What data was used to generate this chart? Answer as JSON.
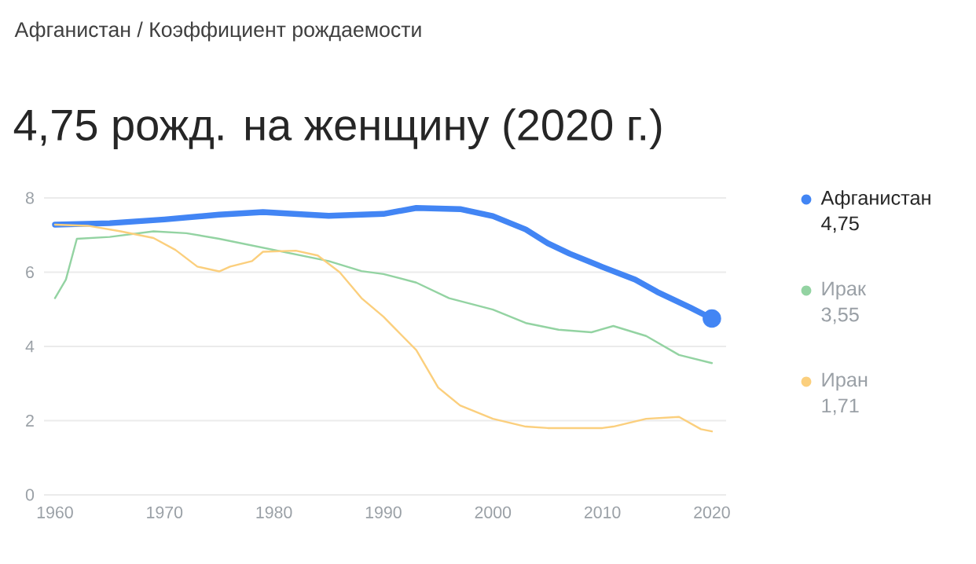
{
  "chart_data": {
    "type": "line",
    "title": "4,75 рожд. на женщину (2020 г.)",
    "subtitle": "Афганистан / Коэффициент рождаемости",
    "xlim": [
      1959,
      2021.3
    ],
    "ylim": [
      0,
      8
    ],
    "xticks": [
      1960,
      1970,
      1980,
      1990,
      2000,
      2010,
      2020
    ],
    "yticks": [
      0,
      2,
      4,
      6,
      8
    ],
    "grid": "y",
    "legend": "right",
    "annotations": [
      "4,75",
      "3,55",
      "1,71"
    ],
    "series": [
      {
        "name": "Афганистан",
        "color": "#4285f4",
        "x": [
          1960,
          1965,
          1970,
          1975,
          1979,
          1985,
          1988,
          1990,
          1993,
          1997,
          2000,
          2003,
          2005,
          2007,
          2010,
          2013,
          2015,
          2018,
          2020
        ],
        "values": [
          7.28,
          7.32,
          7.42,
          7.55,
          7.62,
          7.52,
          7.55,
          7.57,
          7.73,
          7.7,
          7.51,
          7.15,
          6.78,
          6.5,
          6.14,
          5.8,
          5.47,
          5.05,
          4.75
        ]
      },
      {
        "name": "Ирак",
        "color": "#93d3a2",
        "x": [
          1960,
          1961,
          1962,
          1965,
          1969,
          1972,
          1975,
          1980,
          1985,
          1988,
          1990,
          1993,
          1996,
          2000,
          2003,
          2006,
          2009,
          2011,
          2014,
          2017,
          2020
        ],
        "values": [
          5.3,
          5.8,
          6.9,
          6.95,
          7.1,
          7.05,
          6.9,
          6.6,
          6.3,
          6.03,
          5.95,
          5.72,
          5.3,
          4.99,
          4.63,
          4.45,
          4.38,
          4.55,
          4.28,
          3.77,
          3.55
        ]
      },
      {
        "name": "Иран",
        "color": "#fbcf7d",
        "x": [
          1960,
          1963,
          1966,
          1969,
          1971,
          1973,
          1975,
          1976,
          1978,
          1979,
          1982,
          1984,
          1986,
          1988,
          1990,
          1991,
          1993,
          1995,
          1997,
          2000,
          2003,
          2005,
          2010,
          2011,
          2014,
          2017,
          2019,
          2020
        ],
        "values": [
          7.28,
          7.25,
          7.1,
          6.92,
          6.6,
          6.15,
          6.02,
          6.15,
          6.3,
          6.55,
          6.58,
          6.45,
          6.0,
          5.3,
          4.8,
          4.5,
          3.9,
          2.89,
          2.41,
          2.05,
          1.84,
          1.8,
          1.8,
          1.84,
          2.05,
          2.1,
          1.77,
          1.71
        ]
      },
      {
        "color": "#4285f4",
        "type": "scatter",
        "x": [
          2020
        ],
        "values": [
          4.75
        ]
      }
    ]
  }
}
